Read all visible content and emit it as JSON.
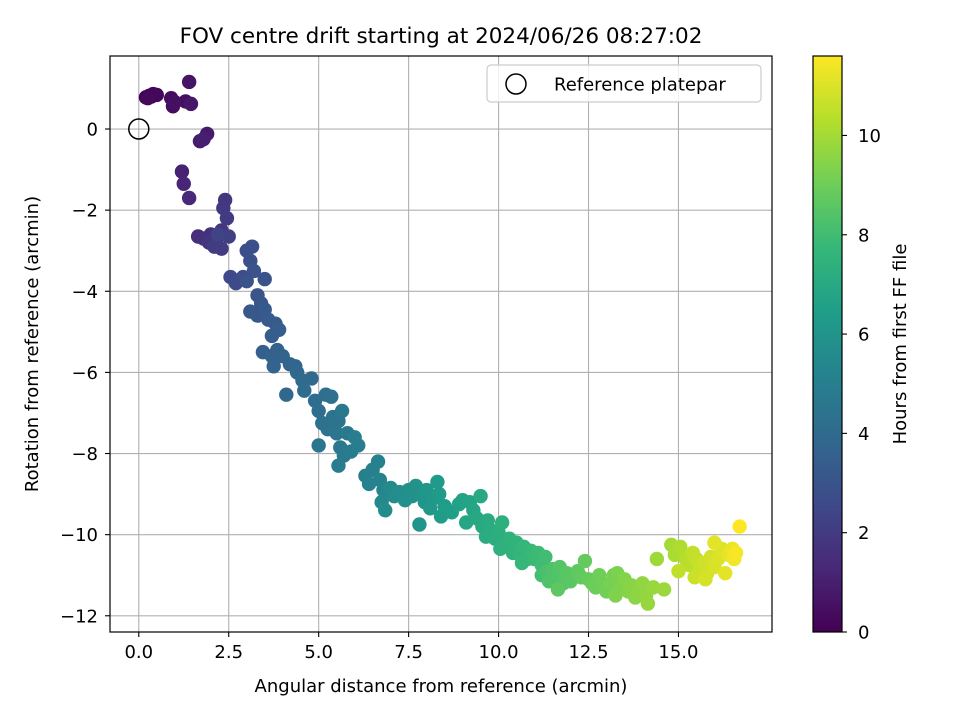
{
  "chart_data": {
    "type": "scatter",
    "title": "FOV centre drift starting at 2024/06/26 08:27:02",
    "xlabel": "Angular distance from reference (arcmin)",
    "ylabel": "Rotation from reference (arcmin)",
    "xlim": [
      -0.8,
      17.6
    ],
    "ylim": [
      -12.4,
      1.8
    ],
    "x_ticks": [
      0.0,
      2.5,
      5.0,
      7.5,
      10.0,
      12.5,
      15.0
    ],
    "x_tick_labels": [
      "0.0",
      "2.5",
      "5.0",
      "7.5",
      "10.0",
      "12.5",
      "15.0"
    ],
    "y_ticks": [
      0,
      -2,
      -4,
      -6,
      -8,
      -10,
      -12
    ],
    "y_tick_labels": [
      "0",
      "−2",
      "−4",
      "−6",
      "−8",
      "−10",
      "−12"
    ],
    "grid": true,
    "legend": {
      "placement": "upper-right",
      "label": "Reference platepar"
    },
    "reference_point": {
      "x": 0,
      "y": 0
    },
    "colorbar": {
      "label": "Hours from first FF file",
      "colormap": "viridis",
      "range": [
        0,
        11.6
      ],
      "ticks": [
        0,
        2,
        4,
        6,
        8,
        10
      ],
      "tick_labels": [
        "0",
        "2",
        "4",
        "6",
        "8",
        "10"
      ]
    },
    "points": [
      [
        0.2,
        0.78,
        0.0
      ],
      [
        0.3,
        0.82,
        0.05
      ],
      [
        0.35,
        0.8,
        0.1
      ],
      [
        0.4,
        0.86,
        0.15
      ],
      [
        0.5,
        0.84,
        0.2
      ],
      [
        0.25,
        0.76,
        0.25
      ],
      [
        0.9,
        0.76,
        0.35
      ],
      [
        0.95,
        0.56,
        0.4
      ],
      [
        1.3,
        0.68,
        0.45
      ],
      [
        1.0,
        0.66,
        0.5
      ],
      [
        1.4,
        1.16,
        0.6
      ],
      [
        1.45,
        0.62,
        0.7
      ],
      [
        1.9,
        -0.12,
        0.8
      ],
      [
        1.7,
        -0.3,
        0.9
      ],
      [
        1.8,
        -0.25,
        1.0
      ],
      [
        1.2,
        -1.05,
        1.1
      ],
      [
        1.25,
        -1.35,
        1.2
      ],
      [
        1.4,
        -1.7,
        1.3
      ],
      [
        1.65,
        -2.65,
        1.5
      ],
      [
        1.8,
        -2.7,
        1.6
      ],
      [
        2.0,
        -2.6,
        1.65
      ],
      [
        2.1,
        -2.75,
        1.7
      ],
      [
        2.2,
        -2.65,
        1.75
      ],
      [
        1.95,
        -2.8,
        1.8
      ],
      [
        2.3,
        -2.5,
        1.85
      ],
      [
        2.4,
        -1.75,
        1.9
      ],
      [
        2.35,
        -1.95,
        1.95
      ],
      [
        2.45,
        -2.2,
        2.0
      ],
      [
        2.1,
        -2.9,
        2.05
      ],
      [
        2.3,
        -2.95,
        2.1
      ],
      [
        2.5,
        -2.65,
        2.2
      ],
      [
        2.2,
        -2.6,
        2.3
      ],
      [
        2.55,
        -3.65,
        2.5
      ],
      [
        2.7,
        -3.8,
        2.6
      ],
      [
        2.9,
        -3.65,
        2.7
      ],
      [
        3.0,
        -3.0,
        2.75
      ],
      [
        3.1,
        -3.25,
        2.8
      ],
      [
        3.15,
        -2.9,
        2.85
      ],
      [
        3.2,
        -3.5,
        2.9
      ],
      [
        3.0,
        -3.75,
        2.95
      ],
      [
        3.5,
        -3.7,
        3.0
      ],
      [
        3.3,
        -4.1,
        3.05
      ],
      [
        3.4,
        -4.3,
        3.1
      ],
      [
        3.1,
        -4.5,
        3.15
      ],
      [
        3.3,
        -4.6,
        3.2
      ],
      [
        3.5,
        -4.45,
        3.25
      ],
      [
        3.6,
        -4.7,
        3.3
      ],
      [
        3.8,
        -4.8,
        3.35
      ],
      [
        3.7,
        -5.1,
        3.4
      ],
      [
        3.9,
        -4.95,
        3.45
      ],
      [
        3.45,
        -5.5,
        3.5
      ],
      [
        3.7,
        -5.6,
        3.55
      ],
      [
        3.85,
        -5.45,
        3.6
      ],
      [
        4.0,
        -5.6,
        3.65
      ],
      [
        3.75,
        -5.85,
        3.7
      ],
      [
        4.2,
        -5.8,
        3.75
      ],
      [
        4.35,
        -5.85,
        3.8
      ],
      [
        4.4,
        -6.0,
        3.85
      ],
      [
        4.1,
        -6.55,
        3.9
      ],
      [
        4.55,
        -6.2,
        3.95
      ],
      [
        4.8,
        -6.15,
        4.0
      ],
      [
        4.6,
        -6.45,
        4.05
      ],
      [
        4.9,
        -6.7,
        4.1
      ],
      [
        5.0,
        -6.95,
        4.15
      ],
      [
        5.2,
        -6.55,
        4.2
      ],
      [
        5.35,
        -6.6,
        4.25
      ],
      [
        5.1,
        -7.25,
        4.3
      ],
      [
        5.25,
        -7.4,
        4.35
      ],
      [
        5.4,
        -7.1,
        4.4
      ],
      [
        5.55,
        -7.2,
        4.45
      ],
      [
        5.0,
        -7.8,
        4.5
      ],
      [
        5.5,
        -7.5,
        4.55
      ],
      [
        5.65,
        -6.95,
        4.6
      ],
      [
        5.6,
        -7.85,
        4.65
      ],
      [
        5.7,
        -8.05,
        4.7
      ],
      [
        5.8,
        -7.5,
        4.75
      ],
      [
        5.9,
        -7.95,
        4.8
      ],
      [
        5.55,
        -8.3,
        4.85
      ],
      [
        6.1,
        -7.8,
        4.9
      ],
      [
        6.0,
        -7.6,
        4.95
      ],
      [
        6.3,
        -8.55,
        5.0
      ],
      [
        6.5,
        -8.4,
        5.05
      ],
      [
        6.65,
        -8.2,
        5.1
      ],
      [
        6.4,
        -8.75,
        5.15
      ],
      [
        6.7,
        -8.65,
        5.2
      ],
      [
        6.8,
        -8.9,
        5.3
      ],
      [
        6.9,
        -9.0,
        5.4
      ],
      [
        6.75,
        -9.2,
        5.5
      ],
      [
        7.0,
        -8.85,
        5.55
      ],
      [
        7.1,
        -9.05,
        5.6
      ],
      [
        6.85,
        -9.4,
        5.65
      ],
      [
        7.25,
        -8.95,
        5.7
      ],
      [
        7.4,
        -9.15,
        5.75
      ],
      [
        7.5,
        -8.9,
        5.8
      ],
      [
        7.6,
        -9.05,
        5.85
      ],
      [
        7.7,
        -8.8,
        5.9
      ],
      [
        7.85,
        -9.0,
        5.95
      ],
      [
        7.95,
        -9.2,
        6.0
      ],
      [
        7.8,
        -9.75,
        6.05
      ],
      [
        8.0,
        -8.9,
        6.1
      ],
      [
        8.1,
        -9.35,
        6.15
      ],
      [
        8.2,
        -9.1,
        6.2
      ],
      [
        8.3,
        -8.7,
        6.25
      ],
      [
        8.35,
        -9.0,
        6.3
      ],
      [
        8.4,
        -9.55,
        6.35
      ],
      [
        8.5,
        -9.3,
        6.4
      ],
      [
        8.7,
        -9.45,
        6.5
      ],
      [
        8.9,
        -9.25,
        6.6
      ],
      [
        9.0,
        -9.15,
        6.7
      ],
      [
        9.2,
        -9.2,
        6.75
      ],
      [
        9.3,
        -9.4,
        6.8
      ],
      [
        9.1,
        -9.7,
        6.85
      ],
      [
        9.4,
        -9.6,
        6.9
      ],
      [
        9.5,
        -9.05,
        6.95
      ],
      [
        9.55,
        -9.8,
        7.0
      ],
      [
        9.7,
        -9.65,
        7.05
      ],
      [
        9.8,
        -9.9,
        7.1
      ],
      [
        9.65,
        -10.05,
        7.15
      ],
      [
        9.9,
        -10.1,
        7.2
      ],
      [
        10.0,
        -9.95,
        7.25
      ],
      [
        10.1,
        -9.7,
        7.3
      ],
      [
        10.2,
        -10.2,
        7.35
      ],
      [
        10.05,
        -10.35,
        7.4
      ],
      [
        10.3,
        -10.1,
        7.45
      ],
      [
        10.4,
        -10.45,
        7.5
      ],
      [
        10.5,
        -10.2,
        7.55
      ],
      [
        10.6,
        -10.5,
        7.6
      ],
      [
        10.7,
        -10.3,
        7.65
      ],
      [
        10.8,
        -10.6,
        7.7
      ],
      [
        10.65,
        -10.7,
        7.75
      ],
      [
        10.9,
        -10.4,
        7.8
      ],
      [
        11.0,
        -10.6,
        7.85
      ],
      [
        11.1,
        -10.45,
        7.9
      ],
      [
        11.2,
        -10.75,
        7.95
      ],
      [
        11.3,
        -10.55,
        8.0
      ],
      [
        11.2,
        -11.0,
        8.1
      ],
      [
        11.35,
        -10.9,
        8.2
      ],
      [
        11.5,
        -10.85,
        8.3
      ],
      [
        11.4,
        -11.15,
        8.35
      ],
      [
        11.65,
        -11.0,
        8.4
      ],
      [
        11.7,
        -10.8,
        8.45
      ],
      [
        11.8,
        -11.2,
        8.5
      ],
      [
        11.9,
        -10.95,
        8.55
      ],
      [
        12.0,
        -11.15,
        8.6
      ],
      [
        11.65,
        -11.35,
        8.65
      ],
      [
        12.2,
        -10.9,
        8.7
      ],
      [
        12.3,
        -11.05,
        8.75
      ],
      [
        12.4,
        -10.65,
        8.8
      ],
      [
        12.5,
        -11.1,
        8.85
      ],
      [
        12.6,
        -11.2,
        8.9
      ],
      [
        12.7,
        -11.3,
        8.95
      ],
      [
        12.8,
        -11.0,
        9.0
      ],
      [
        12.9,
        -11.25,
        9.05
      ],
      [
        13.0,
        -11.4,
        9.1
      ],
      [
        13.1,
        -11.2,
        9.15
      ],
      [
        13.2,
        -11.0,
        9.2
      ],
      [
        13.3,
        -10.95,
        9.25
      ],
      [
        13.35,
        -11.3,
        9.3
      ],
      [
        13.25,
        -11.5,
        9.35
      ],
      [
        13.5,
        -11.1,
        9.4
      ],
      [
        13.6,
        -11.4,
        9.45
      ],
      [
        13.7,
        -11.25,
        9.5
      ],
      [
        13.8,
        -11.55,
        9.55
      ],
      [
        13.9,
        -11.35,
        9.6
      ],
      [
        14.0,
        -11.2,
        9.65
      ],
      [
        14.1,
        -11.5,
        9.7
      ],
      [
        14.15,
        -11.7,
        9.75
      ],
      [
        14.3,
        -11.3,
        9.8
      ],
      [
        14.6,
        -11.35,
        9.85
      ],
      [
        14.4,
        -10.6,
        9.9
      ],
      [
        14.8,
        -10.25,
        10.0
      ],
      [
        14.9,
        -10.5,
        10.1
      ],
      [
        15.05,
        -10.3,
        10.2
      ],
      [
        15.2,
        -10.6,
        10.3
      ],
      [
        15.3,
        -10.75,
        10.4
      ],
      [
        15.0,
        -10.9,
        10.5
      ],
      [
        15.4,
        -10.45,
        10.55
      ],
      [
        15.5,
        -10.6,
        10.6
      ],
      [
        15.6,
        -10.85,
        10.65
      ],
      [
        15.45,
        -11.05,
        10.7
      ],
      [
        15.7,
        -10.7,
        10.75
      ],
      [
        15.8,
        -10.95,
        10.8
      ],
      [
        15.9,
        -10.55,
        10.85
      ],
      [
        15.75,
        -11.1,
        10.9
      ],
      [
        16.0,
        -10.8,
        10.95
      ],
      [
        16.1,
        -10.6,
        11.0
      ],
      [
        16.2,
        -10.35,
        11.05
      ],
      [
        16.0,
        -10.2,
        11.1
      ],
      [
        16.3,
        -10.95,
        11.15
      ],
      [
        16.4,
        -10.5,
        11.2
      ],
      [
        16.5,
        -10.35,
        11.3
      ],
      [
        16.55,
        -10.6,
        11.4
      ],
      [
        16.6,
        -10.45,
        11.5
      ],
      [
        16.7,
        -9.8,
        11.6
      ]
    ]
  }
}
